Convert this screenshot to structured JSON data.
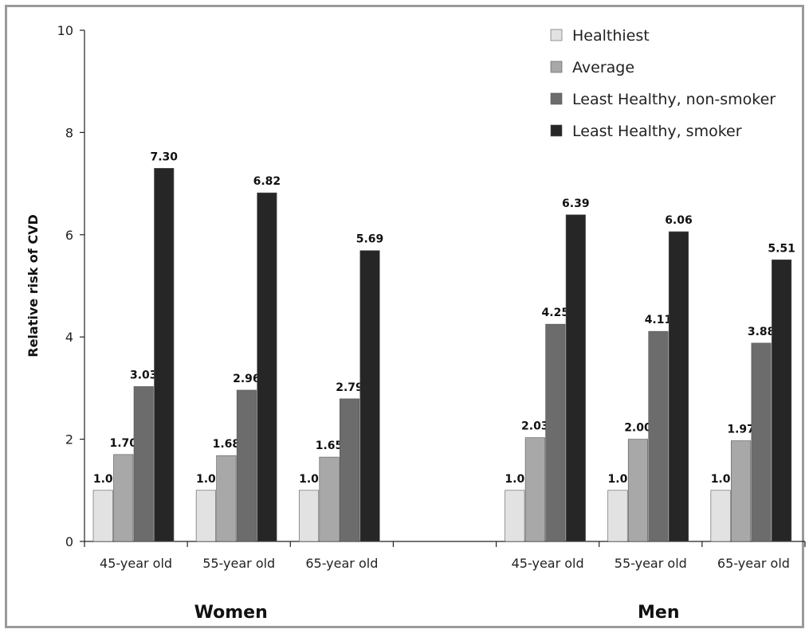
{
  "chart_data": {
    "type": "bar",
    "title": "",
    "xlabel": "",
    "ylabel": "Relative risk of CVD",
    "ylim": [
      0,
      10
    ],
    "yticks": [
      "0",
      "2",
      "4",
      "6",
      "8",
      "10"
    ],
    "grid": false,
    "legend_position": "top-right",
    "groups": [
      {
        "label": "Women",
        "categories": [
          "45-year old",
          "55-year old",
          "65-year old"
        ],
        "series": [
          {
            "name": "Healthiest",
            "values": [
              1.0,
              1.0,
              1.0
            ],
            "labels": [
              "1.0",
              "1.0",
              "1.0"
            ]
          },
          {
            "name": "Average",
            "values": [
              1.7,
              1.68,
              1.65
            ],
            "labels": [
              "1.70",
              "1.68",
              "1.65"
            ]
          },
          {
            "name": "Least Healthy, non-smoker",
            "values": [
              3.03,
              2.96,
              2.79
            ],
            "labels": [
              "3.03",
              "2.96",
              "2.79"
            ]
          },
          {
            "name": "Least Healthy, smoker",
            "values": [
              7.3,
              6.82,
              5.69
            ],
            "labels": [
              "7.30",
              "6.82",
              "5.69"
            ]
          }
        ]
      },
      {
        "label": "Men",
        "categories": [
          "45-year old",
          "55-year old",
          "65-year old"
        ],
        "series": [
          {
            "name": "Healthiest",
            "values": [
              1.0,
              1.0,
              1.0
            ],
            "labels": [
              "1.0",
              "1.0",
              "1.0"
            ]
          },
          {
            "name": "Average",
            "values": [
              2.03,
              2.0,
              1.97
            ],
            "labels": [
              "2.03",
              "2.00",
              "1.97"
            ]
          },
          {
            "name": "Least Healthy, non-smoker",
            "values": [
              4.25,
              4.11,
              3.88
            ],
            "labels": [
              "4.25",
              "4.11",
              "3.88"
            ]
          },
          {
            "name": "Least Healthy, smoker",
            "values": [
              6.39,
              6.06,
              5.51
            ],
            "labels": [
              "6.39",
              "6.06",
              "5.51"
            ]
          }
        ]
      }
    ],
    "legend": [
      "Healthiest",
      "Average",
      "Least Healthy, non-smoker",
      "Least Healthy, smoker"
    ],
    "colors": [
      "#e2e2e2",
      "#a8a8a8",
      "#6c6c6c",
      "#262626"
    ]
  }
}
